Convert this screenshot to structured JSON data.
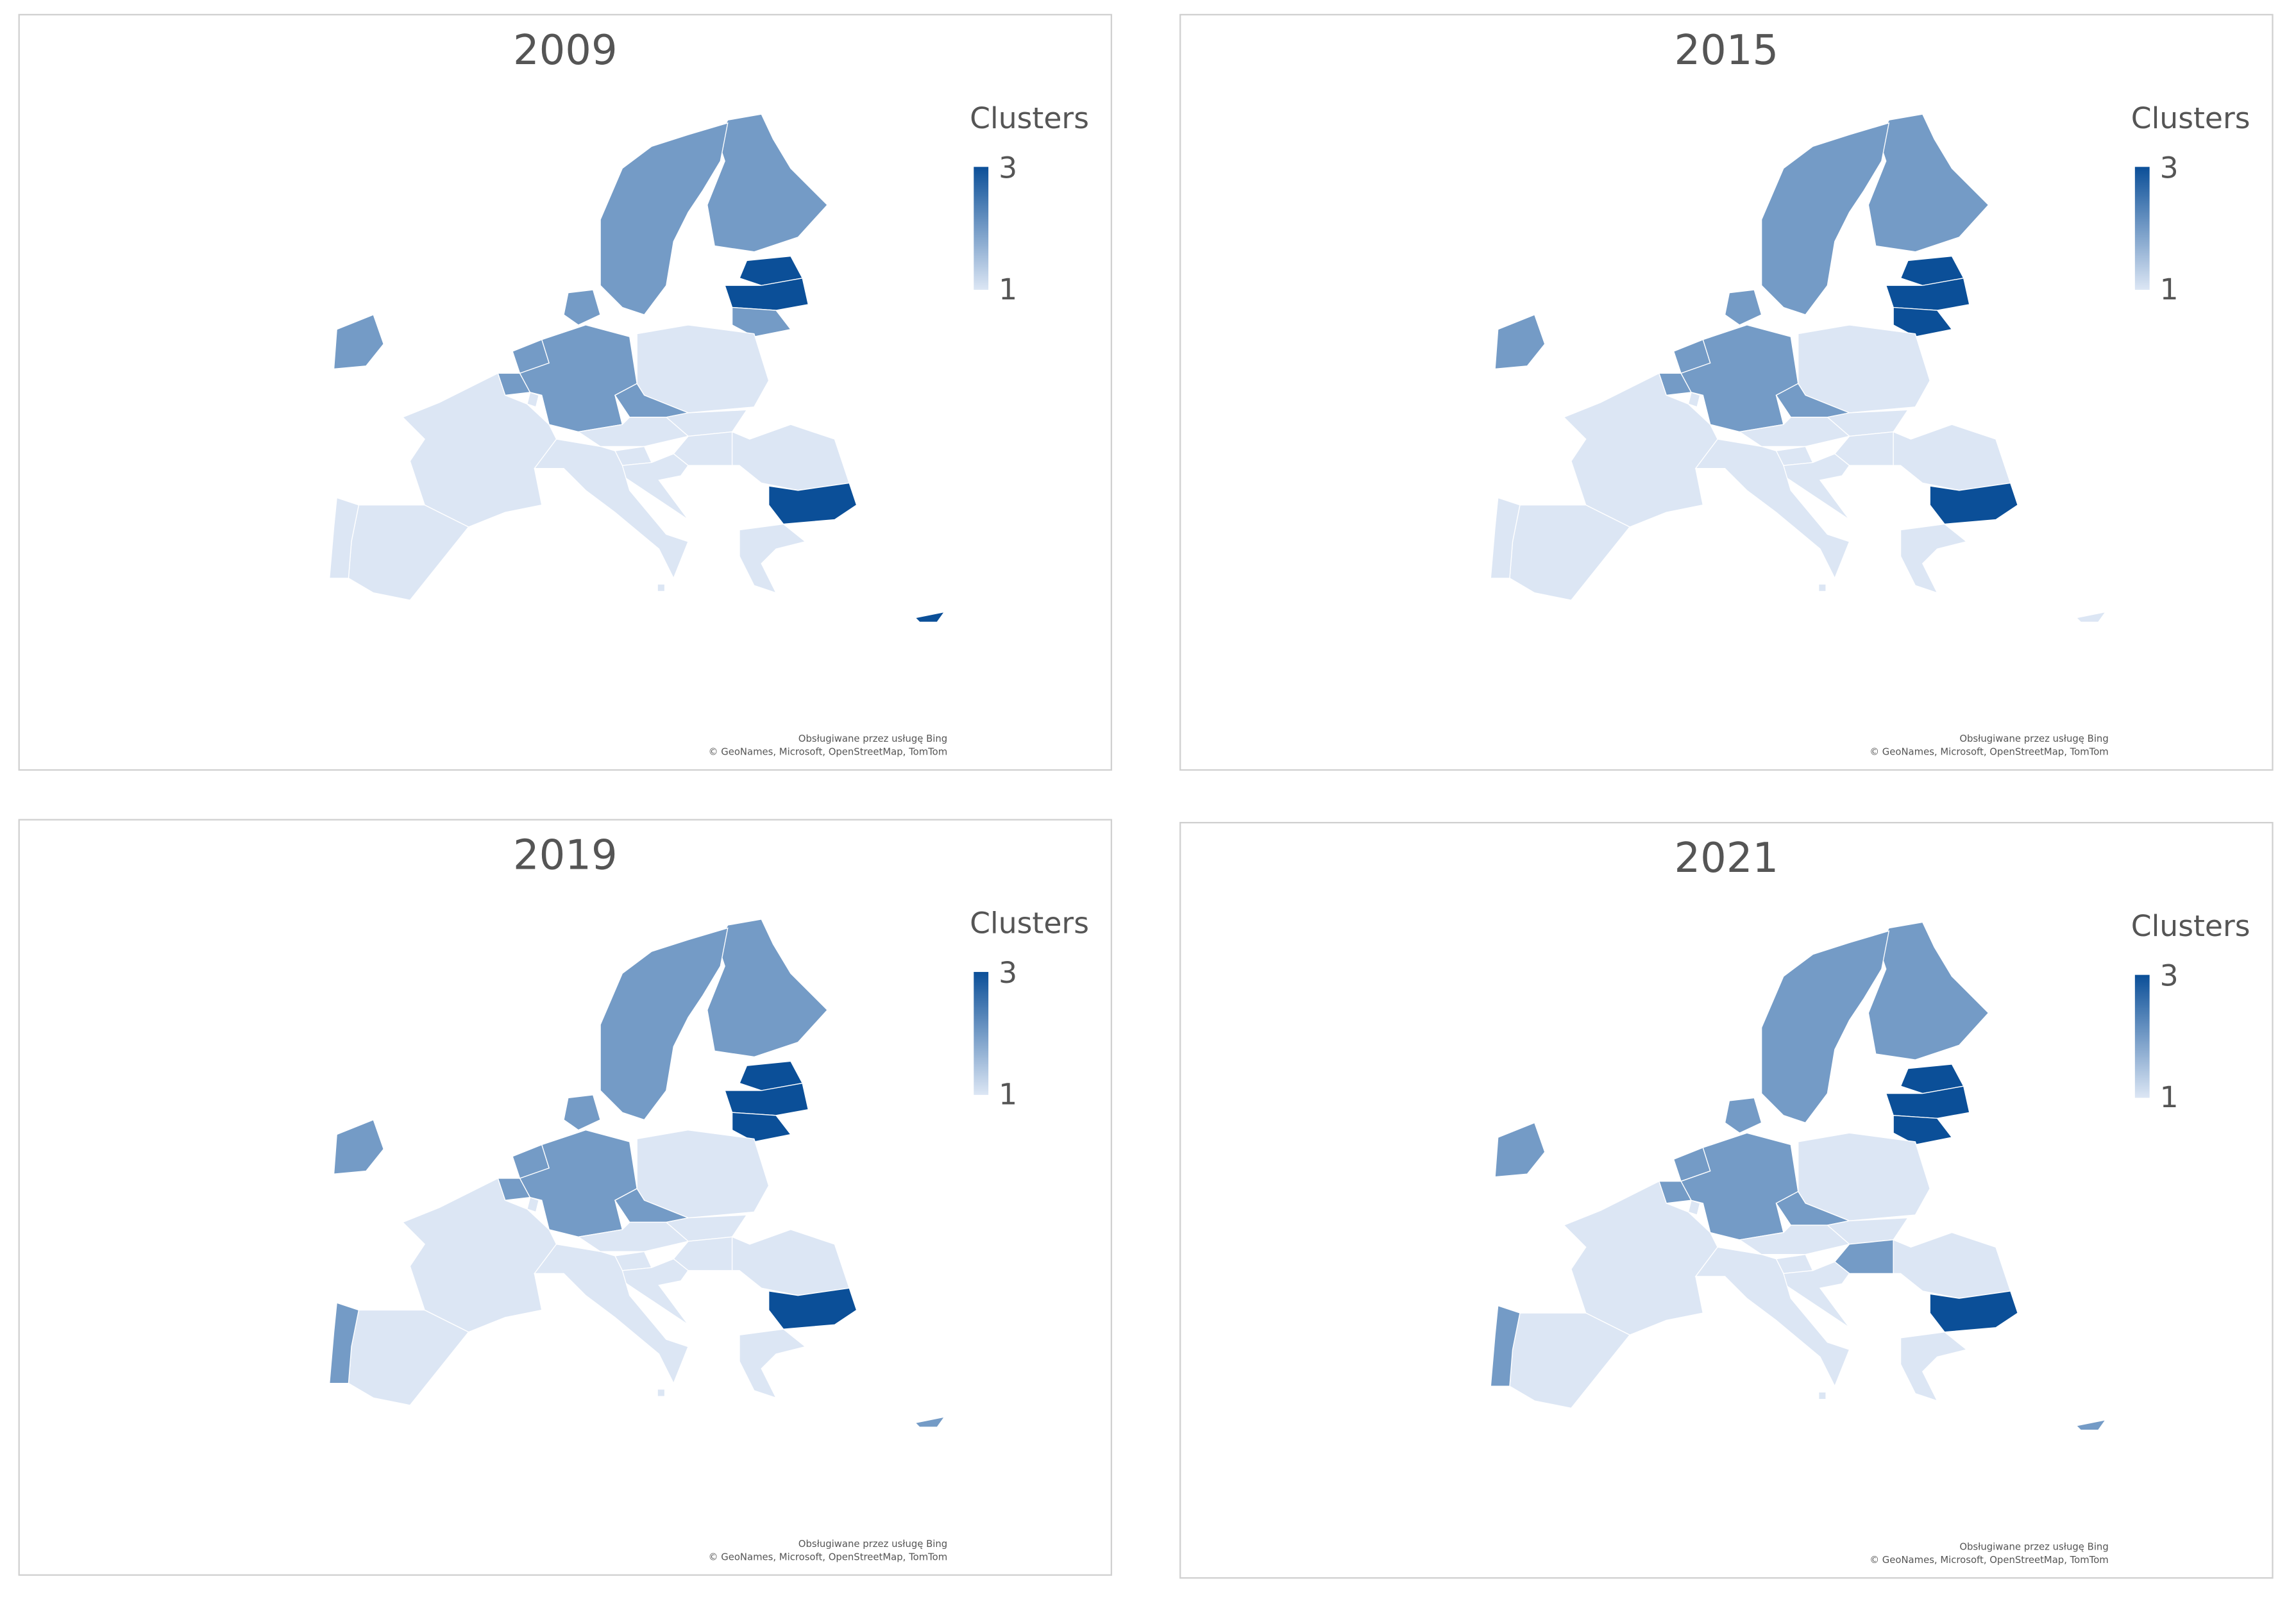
{
  "color_scale": [
    "#dce6f4",
    "#0b4f98"
  ],
  "maps": [
    {
      "title": "2009",
      "legend": {
        "title": "Clusters",
        "max": 3,
        "min": 1
      },
      "clusters": [
        2,
        2,
        3,
        3,
        2,
        2,
        2,
        2,
        2,
        1,
        2,
        1,
        2,
        1,
        1,
        1,
        1,
        1,
        1,
        3,
        1,
        1,
        1,
        1,
        1,
        3,
        1
      ],
      "attribution": [
        "Obsługiwane przez usługę Bing",
        "© GeoNames, Microsoft, OpenStreetMap, TomTom"
      ]
    },
    {
      "title": "2015",
      "legend": {
        "title": "Clusters",
        "max": 3,
        "min": 1
      },
      "clusters": [
        2,
        2,
        3,
        3,
        3,
        2,
        2,
        2,
        2,
        1,
        2,
        1,
        2,
        1,
        1,
        1,
        1,
        1,
        1,
        3,
        1,
        1,
        1,
        1,
        1,
        1,
        1
      ],
      "attribution": [
        "Obsługiwane przez usługę Bing",
        "© GeoNames, Microsoft, OpenStreetMap, TomTom"
      ]
    },
    {
      "title": "2019",
      "legend": {
        "title": "Clusters",
        "max": 3,
        "min": 1
      },
      "clusters": [
        2,
        2,
        3,
        3,
        3,
        2,
        2,
        2,
        2,
        1,
        2,
        1,
        2,
        1,
        1,
        1,
        1,
        1,
        1,
        3,
        1,
        1,
        1,
        2,
        1,
        2,
        1
      ],
      "attribution": [
        "Obsługiwane przez usługę Bing",
        "© GeoNames, Microsoft, OpenStreetMap, TomTom"
      ]
    },
    {
      "title": "2021",
      "legend": {
        "title": "Clusters",
        "max": 3,
        "min": 1
      },
      "clusters": [
        2,
        2,
        3,
        3,
        3,
        2,
        2,
        2,
        2,
        1,
        2,
        1,
        2,
        1,
        1,
        2,
        1,
        1,
        1,
        3,
        1,
        1,
        1,
        2,
        1,
        2,
        1
      ],
      "attribution": [
        "Obsługiwane przez usługę Bing",
        "© GeoNames, Microsoft, OpenStreetMap, TomTom"
      ]
    }
  ]
}
